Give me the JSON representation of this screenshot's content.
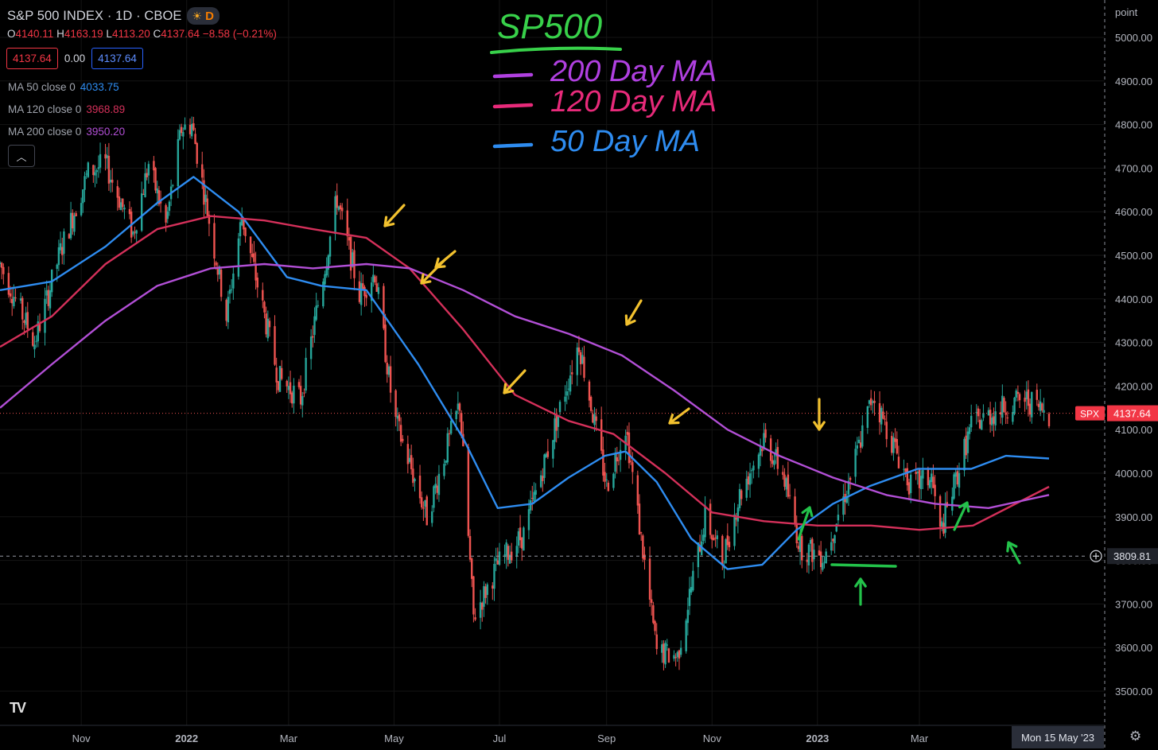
{
  "header": {
    "title": "S&P 500 INDEX · 1D · CBOE",
    "market_state_icon": "sun-icon",
    "interval_badge": "D"
  },
  "ohlc": {
    "o_label": "O",
    "o": "4140.11",
    "h_label": "H",
    "h": "4163.19",
    "l_label": "L",
    "l": "4113.20",
    "c_label": "C",
    "c": "4137.64",
    "change": "−8.58 (−0.21%)"
  },
  "trade": {
    "sell": "4137.64",
    "spread": "0.00",
    "buy": "4137.64"
  },
  "indicators": [
    {
      "label": "MA 50 close 0",
      "value": "4033.75",
      "color": "#2e8cf0"
    },
    {
      "label": "MA 120 close 0",
      "value": "3968.89",
      "color": "#d4305a"
    },
    {
      "label": "MA 200 close 0",
      "value": "3950.20",
      "color": "#b24fd6"
    }
  ],
  "collapse_icon": "chevron-up-icon",
  "logo": "TV",
  "settings_icon": "gear-icon",
  "colors": {
    "up": "#26a69a",
    "down": "#ef5350",
    "ma50": "#2e8cf0",
    "ma120": "#d4305a",
    "ma200": "#b24fd6",
    "bg": "#000000"
  },
  "chart_data": {
    "type": "candlestick",
    "yaxis_unit": "point",
    "ylim": [
      3440,
      5090
    ],
    "yticks": [
      "5000.00",
      "4900.00",
      "4800.00",
      "4700.00",
      "4600.00",
      "4500.00",
      "4400.00",
      "4300.00",
      "4200.00",
      "4100.00",
      "4000.00",
      "3900.00",
      "3800.00",
      "3700.00",
      "3600.00",
      "3500.00"
    ],
    "xticks": [
      "Nov",
      "2022",
      "Mar",
      "May",
      "Jul",
      "Sep",
      "Nov",
      "2023",
      "Mar"
    ],
    "cursor_date": "Mon 15 May '23",
    "last_price": {
      "symbol": "SPX",
      "value": "4137.64"
    },
    "crosshair_price": "3809.81",
    "price_path": [
      [
        "2021-09-15",
        4480
      ],
      [
        "2021-10-05",
        4300
      ],
      [
        "2021-10-20",
        4510
      ],
      [
        "2021-11-05",
        4690
      ],
      [
        "2021-11-15",
        4710
      ],
      [
        "2021-12-01",
        4550
      ],
      [
        "2021-12-10",
        4710
      ],
      [
        "2021-12-20",
        4570
      ],
      [
        "2021-12-29",
        4790
      ],
      [
        "2022-01-04",
        4800
      ],
      [
        "2022-01-24",
        4360
      ],
      [
        "2022-02-02",
        4590
      ],
      [
        "2022-02-23",
        4220
      ],
      [
        "2022-03-08",
        4170
      ],
      [
        "2022-03-29",
        4630
      ],
      [
        "2022-04-11",
        4410
      ],
      [
        "2022-04-20",
        4460
      ],
      [
        "2022-05-01",
        4130
      ],
      [
        "2022-05-20",
        3900
      ],
      [
        "2022-06-08",
        4160
      ],
      [
        "2022-06-16",
        3670
      ],
      [
        "2022-06-30",
        3790
      ],
      [
        "2022-07-15",
        3860
      ],
      [
        "2022-08-16",
        4300
      ],
      [
        "2022-09-01",
        3970
      ],
      [
        "2022-09-12",
        4110
      ],
      [
        "2022-09-30",
        3590
      ],
      [
        "2022-10-12",
        3580
      ],
      [
        "2022-10-28",
        3900
      ],
      [
        "2022-11-07",
        3800
      ],
      [
        "2022-11-17",
        3950
      ],
      [
        "2022-12-01",
        4080
      ],
      [
        "2022-12-12",
        4000
      ],
      [
        "2022-12-22",
        3830
      ],
      [
        "2023-01-05",
        3810
      ],
      [
        "2023-01-20",
        3990
      ],
      [
        "2023-02-02",
        4180
      ],
      [
        "2023-02-24",
        3970
      ],
      [
        "2023-03-08",
        3990
      ],
      [
        "2023-03-13",
        3860
      ],
      [
        "2023-03-31",
        4110
      ],
      [
        "2023-04-18",
        4150
      ],
      [
        "2023-05-01",
        4170
      ],
      [
        "2023-05-15",
        4137.64
      ]
    ],
    "series": [
      {
        "name": "MA 50 close 0",
        "values": [
          [
            "2021-09-15",
            4420
          ],
          [
            "2021-10-15",
            4440
          ],
          [
            "2021-11-15",
            4520
          ],
          [
            "2021-12-15",
            4620
          ],
          [
            "2022-01-05",
            4680
          ],
          [
            "2022-01-31",
            4600
          ],
          [
            "2022-02-28",
            4450
          ],
          [
            "2022-03-20",
            4430
          ],
          [
            "2022-04-15",
            4420
          ],
          [
            "2022-05-15",
            4250
          ],
          [
            "2022-06-10",
            4080
          ],
          [
            "2022-06-30",
            3920
          ],
          [
            "2022-07-20",
            3930
          ],
          [
            "2022-08-10",
            3990
          ],
          [
            "2022-08-31",
            4040
          ],
          [
            "2022-09-12",
            4050
          ],
          [
            "2022-09-30",
            3980
          ],
          [
            "2022-10-20",
            3850
          ],
          [
            "2022-11-10",
            3780
          ],
          [
            "2022-11-30",
            3790
          ],
          [
            "2022-12-20",
            3870
          ],
          [
            "2023-01-10",
            3930
          ],
          [
            "2023-01-31",
            3970
          ],
          [
            "2023-02-28",
            4010
          ],
          [
            "2023-03-31",
            4010
          ],
          [
            "2023-04-20",
            4040
          ],
          [
            "2023-05-15",
            4033.75
          ]
        ]
      },
      {
        "name": "MA 120 close 0",
        "values": [
          [
            "2021-09-15",
            4290
          ],
          [
            "2021-10-15",
            4360
          ],
          [
            "2021-11-15",
            4480
          ],
          [
            "2021-12-15",
            4560
          ],
          [
            "2022-01-15",
            4590
          ],
          [
            "2022-02-15",
            4580
          ],
          [
            "2022-03-15",
            4560
          ],
          [
            "2022-04-15",
            4540
          ],
          [
            "2022-05-10",
            4470
          ],
          [
            "2022-06-10",
            4330
          ],
          [
            "2022-07-10",
            4180
          ],
          [
            "2022-08-10",
            4120
          ],
          [
            "2022-09-05",
            4090
          ],
          [
            "2022-10-05",
            4000
          ],
          [
            "2022-11-01",
            3910
          ],
          [
            "2022-12-01",
            3890
          ],
          [
            "2023-01-01",
            3880
          ],
          [
            "2023-02-01",
            3880
          ],
          [
            "2023-03-01",
            3870
          ],
          [
            "2023-04-01",
            3880
          ],
          [
            "2023-05-15",
            3968.89
          ]
        ]
      },
      {
        "name": "MA 200 close 0",
        "values": [
          [
            "2021-09-15",
            4150
          ],
          [
            "2021-10-15",
            4250
          ],
          [
            "2021-11-15",
            4350
          ],
          [
            "2021-12-15",
            4430
          ],
          [
            "2022-01-15",
            4470
          ],
          [
            "2022-02-15",
            4480
          ],
          [
            "2022-03-15",
            4470
          ],
          [
            "2022-04-15",
            4480
          ],
          [
            "2022-05-10",
            4470
          ],
          [
            "2022-06-10",
            4420
          ],
          [
            "2022-07-10",
            4360
          ],
          [
            "2022-08-10",
            4320
          ],
          [
            "2022-09-10",
            4270
          ],
          [
            "2022-10-10",
            4190
          ],
          [
            "2022-11-10",
            4100
          ],
          [
            "2022-12-10",
            4040
          ],
          [
            "2023-01-10",
            3990
          ],
          [
            "2023-02-10",
            3950
          ],
          [
            "2023-03-10",
            3930
          ],
          [
            "2023-04-10",
            3920
          ],
          [
            "2023-05-15",
            3950.2
          ]
        ]
      }
    ],
    "annotations": {
      "title": "SP500",
      "legend": [
        {
          "text": "200 Day MA",
          "color": "#b040e0"
        },
        {
          "text": "120 Day MA",
          "color": "#e82a7a"
        },
        {
          "text": "50 Day MA",
          "color": "#2e8cf0"
        }
      ],
      "resistance_arrows_color": "#f2c12e",
      "support_arrows_color": "#23c24a"
    }
  }
}
